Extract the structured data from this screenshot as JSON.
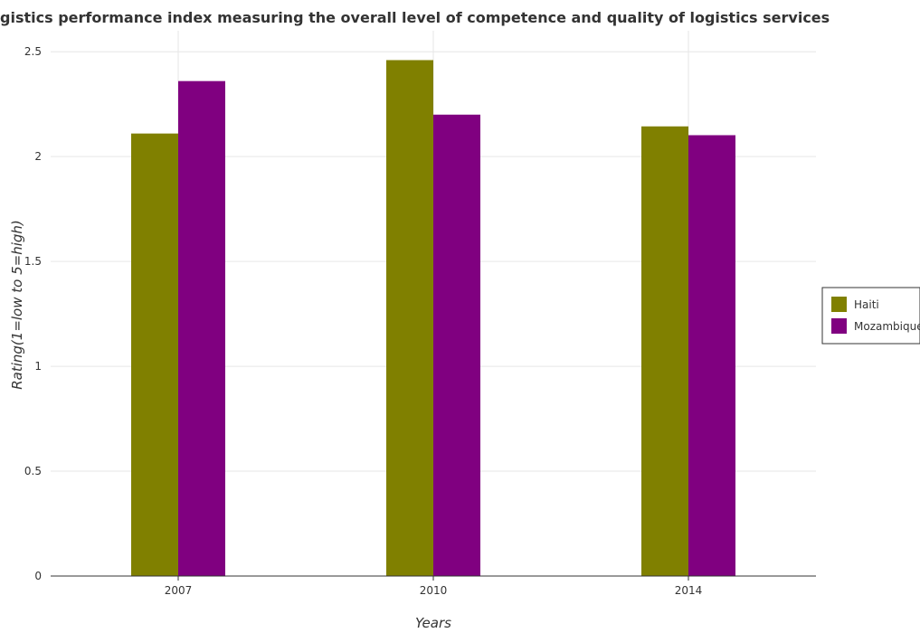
{
  "chart_data": {
    "type": "bar",
    "title": "Logistics performance index measuring the overall level of competence and quality of logistics services",
    "xlabel": "Years",
    "ylabel": "Rating(1=low to 5=high)",
    "categories": [
      "2007",
      "2010",
      "2014"
    ],
    "series": [
      {
        "name": "Haiti",
        "color": "#808000",
        "values": [
          2.11,
          2.46,
          2.144
        ]
      },
      {
        "name": "Mozambique",
        "color": "#800080",
        "values": [
          2.36,
          2.2,
          2.102
        ]
      }
    ],
    "ylim": [
      0,
      2.6
    ],
    "yticks": [
      0,
      0.5,
      1,
      1.5,
      2,
      2.5
    ],
    "ytick_labels": [
      "0",
      "0.5",
      "1",
      "1.5",
      "2",
      "2.5"
    ],
    "grid": true,
    "legend_position": "right"
  }
}
